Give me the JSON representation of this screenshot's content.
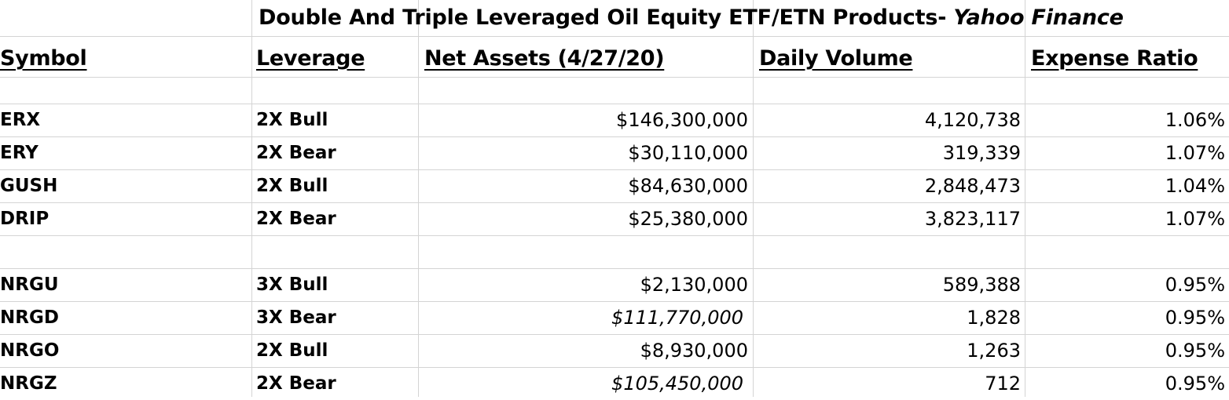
{
  "title": {
    "main": "Double And Triple Leveraged Oil Equity ETF/ETN Products- ",
    "source": "Yahoo Finance"
  },
  "headers": {
    "symbol": "Symbol",
    "leverage": "Leverage",
    "net_assets": "Net Assets (4/27/20)",
    "daily_volume": "Daily Volume",
    "expense_ratio": "Expense Ratio"
  },
  "rows": [
    {
      "symbol": "ERX",
      "leverage": "2X Bull",
      "net_assets": "$146,300,000",
      "daily_volume": "4,120,738",
      "expense_ratio": "1.06%",
      "net_assets_italic": false
    },
    {
      "symbol": "ERY",
      "leverage": "2X Bear",
      "net_assets": "$30,110,000",
      "daily_volume": "319,339",
      "expense_ratio": "1.07%",
      "net_assets_italic": false
    },
    {
      "symbol": "GUSH",
      "leverage": "2X Bull",
      "net_assets": "$84,630,000",
      "daily_volume": "2,848,473",
      "expense_ratio": "1.04%",
      "net_assets_italic": false
    },
    {
      "symbol": "DRIP",
      "leverage": "2X Bear",
      "net_assets": "$25,380,000",
      "daily_volume": "3,823,117",
      "expense_ratio": "1.07%",
      "net_assets_italic": false
    },
    {
      "symbol": "NRGU",
      "leverage": "3X Bull",
      "net_assets": "$2,130,000",
      "daily_volume": "589,388",
      "expense_ratio": "0.95%",
      "net_assets_italic": false
    },
    {
      "symbol": "NRGD",
      "leverage": "3X Bear",
      "net_assets": "$111,770,000",
      "daily_volume": "1,828",
      "expense_ratio": "0.95%",
      "net_assets_italic": true
    },
    {
      "symbol": "NRGO",
      "leverage": "2X Bull",
      "net_assets": "$8,930,000",
      "daily_volume": "1,263",
      "expense_ratio": "0.95%",
      "net_assets_italic": false
    },
    {
      "symbol": "NRGZ",
      "leverage": "2X Bear",
      "net_assets": "$105,450,000",
      "daily_volume": "712",
      "expense_ratio": "0.95%",
      "net_assets_italic": true
    }
  ]
}
